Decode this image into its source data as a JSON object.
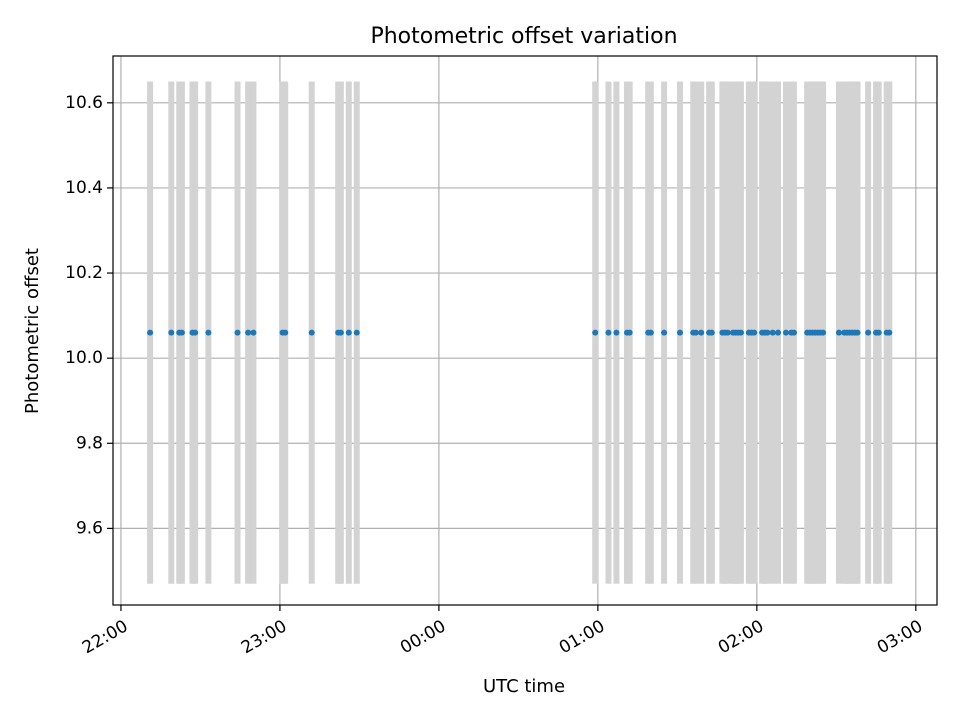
{
  "chart_data": {
    "type": "scatter",
    "title": "Photometric offset variation",
    "xlabel": "UTC time",
    "ylabel": "Photometric offset",
    "grid": true,
    "x_ticks": [
      "22:00",
      "23:00",
      "00:00",
      "01:00",
      "02:00",
      "03:00"
    ],
    "y_ticks": [
      "9.6",
      "9.8",
      "10.0",
      "10.2",
      "10.4",
      "10.6"
    ],
    "xlim": [
      "21:57",
      "03:08"
    ],
    "ylim": [
      9.42,
      10.71
    ],
    "marker_color": "#1f77b4",
    "band_color": "#d3d3d3",
    "band_y_range": [
      9.47,
      10.65
    ],
    "series": [
      {
        "x": [
          "22:11",
          "22:19",
          "22:22",
          "22:23",
          "22:27",
          "22:28",
          "22:33",
          "22:44",
          "22:48",
          "22:50",
          "23:01",
          "23:02",
          "23:12",
          "23:22",
          "23:23",
          "23:26",
          "23:29",
          "00:59",
          "01:04",
          "01:07",
          "01:11",
          "01:12",
          "01:19",
          "01:20",
          "01:25",
          "01:31",
          "01:36",
          "01:37",
          "01:39",
          "01:42",
          "01:43",
          "01:47",
          "01:48",
          "01:49",
          "01:51",
          "01:52",
          "01:53",
          "01:54",
          "01:57",
          "01:58",
          "01:59",
          "02:02",
          "02:03",
          "02:04",
          "02:06",
          "02:08",
          "02:11",
          "02:13",
          "02:14",
          "02:19",
          "02:20",
          "02:21",
          "02:22",
          "02:23",
          "02:24",
          "02:25",
          "02:31",
          "02:33",
          "02:34",
          "02:35",
          "02:36",
          "02:37",
          "02:38",
          "02:42",
          "02:45",
          "02:46",
          "02:49",
          "02:50"
        ],
        "y": [
          10.06,
          10.06,
          10.06,
          10.06,
          10.06,
          10.06,
          10.06,
          10.06,
          10.06,
          10.06,
          10.06,
          10.06,
          10.06,
          10.06,
          10.06,
          10.06,
          10.06,
          10.06,
          10.06,
          10.06,
          10.06,
          10.06,
          10.06,
          10.06,
          10.06,
          10.06,
          10.06,
          10.06,
          10.06,
          10.06,
          10.06,
          10.06,
          10.06,
          10.06,
          10.06,
          10.06,
          10.06,
          10.06,
          10.06,
          10.06,
          10.06,
          10.06,
          10.06,
          10.06,
          10.06,
          10.06,
          10.06,
          10.06,
          10.06,
          10.06,
          10.06,
          10.06,
          10.06,
          10.06,
          10.06,
          10.06,
          10.06,
          10.06,
          10.06,
          10.06,
          10.06,
          10.06,
          10.06,
          10.06,
          10.06,
          10.06,
          10.06,
          10.06
        ]
      }
    ]
  }
}
